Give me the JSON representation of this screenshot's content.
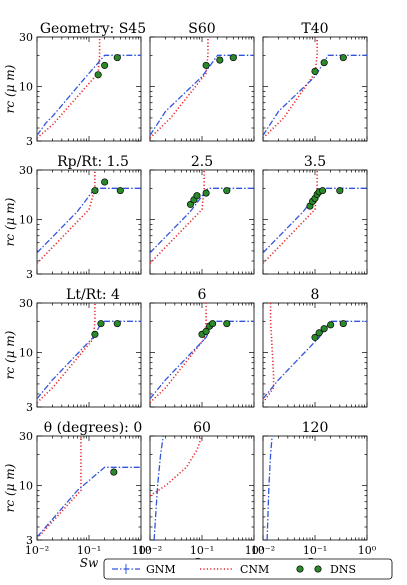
{
  "chart_data": {
    "type": "line",
    "grid": false,
    "legend_placement": "bottom-center",
    "x_scale": "log",
    "y_scale": "log",
    "xlim": [
      0.01,
      1
    ],
    "ylim": [
      3,
      30
    ],
    "x_tick_labels": [
      "10⁻²",
      "10⁻¹",
      "10⁰"
    ],
    "y_tick_labels": [
      "3",
      "10",
      "30"
    ],
    "xlabel": "Sw",
    "ylabel": "rc (μ m)",
    "legend": [
      {
        "name": "GNM",
        "color": "#3355dd",
        "style": "dash-dot"
      },
      {
        "name": "CNM",
        "color": "#e8242b",
        "style": "dotted"
      },
      {
        "name": "DNS",
        "color": "#2a8a2a",
        "style": "marker"
      }
    ],
    "rows": [
      {
        "label": "Geometry:",
        "panels": [
          {
            "title": "S45",
            "gnm": [
              [
                0.01,
                3.4
              ],
              [
                0.015,
                4.5
              ],
              [
                0.02,
                5.2
              ],
              [
                0.08,
                11.8
              ],
              [
                0.2,
                20
              ],
              [
                1,
                20
              ]
            ],
            "cnm": [
              [
                0.01,
                3.2
              ],
              [
                0.02,
                4.3
              ],
              [
                0.15,
                13.5
              ],
              [
                0.16,
                20
              ],
              [
                0.16,
                30
              ]
            ],
            "dns": [
              [
                0.2,
                16
              ],
              [
                0.35,
                19
              ],
              [
                0.15,
                13
              ]
            ]
          },
          {
            "title": "S60",
            "gnm": [
              [
                0.01,
                3.4
              ],
              [
                0.02,
                5.8
              ],
              [
                0.1,
                12.5
              ],
              [
                0.2,
                20
              ],
              [
                1,
                20
              ]
            ],
            "cnm": [
              [
                0.01,
                3.2
              ],
              [
                0.025,
                5
              ],
              [
                0.12,
                13.5
              ],
              [
                0.13,
                20
              ],
              [
                0.13,
                30
              ]
            ],
            "dns": [
              [
                0.12,
                16
              ],
              [
                0.22,
                18
              ],
              [
                0.4,
                19
              ]
            ]
          },
          {
            "title": "T40",
            "gnm": [
              [
                0.01,
                3.4
              ],
              [
                0.02,
                5.8
              ],
              [
                0.1,
                12.5
              ],
              [
                0.18,
                20
              ],
              [
                1,
                20
              ]
            ],
            "cnm": [
              [
                0.01,
                3.2
              ],
              [
                0.025,
                5
              ],
              [
                0.1,
                13.5
              ],
              [
                0.11,
                20
              ],
              [
                0.11,
                30
              ]
            ],
            "dns": [
              [
                0.1,
                14
              ],
              [
                0.15,
                17
              ],
              [
                0.35,
                19
              ]
            ]
          }
        ]
      },
      {
        "label": "Rp/Rt:",
        "panels": [
          {
            "title": "1.5",
            "gnm": [
              [
                0.01,
                4.8
              ],
              [
                0.06,
                12
              ],
              [
                0.13,
                20
              ],
              [
                1,
                20
              ]
            ],
            "cnm": [
              [
                0.01,
                3.8
              ],
              [
                0.1,
                12.5
              ],
              [
                0.13,
                20
              ],
              [
                0.13,
                30
              ]
            ],
            "dns": [
              [
                0.13,
                19
              ],
              [
                0.2,
                23
              ],
              [
                0.4,
                19
              ]
            ]
          },
          {
            "title": "2.5",
            "gnm": [
              [
                0.01,
                4.8
              ],
              [
                0.06,
                12
              ],
              [
                0.13,
                20
              ],
              [
                1,
                20
              ]
            ],
            "cnm": [
              [
                0.01,
                3.8
              ],
              [
                0.1,
                12.5
              ],
              [
                0.11,
                20
              ],
              [
                0.11,
                30
              ]
            ],
            "dns": [
              [
                0.06,
                14
              ],
              [
                0.07,
                15.5
              ],
              [
                0.08,
                17
              ],
              [
                0.12,
                18
              ],
              [
                0.3,
                19
              ]
            ]
          },
          {
            "title": "3.5",
            "gnm": [
              [
                0.01,
                4.8
              ],
              [
                0.06,
                12
              ],
              [
                0.13,
                20
              ],
              [
                1,
                20
              ]
            ],
            "cnm": [
              [
                0.01,
                3.8
              ],
              [
                0.1,
                12.5
              ],
              [
                0.11,
                20
              ],
              [
                0.11,
                30
              ]
            ],
            "dns": [
              [
                0.08,
                13.5
              ],
              [
                0.09,
                15
              ],
              [
                0.1,
                16
              ],
              [
                0.11,
                17.5
              ],
              [
                0.12,
                18.5
              ],
              [
                0.14,
                19
              ],
              [
                0.3,
                19
              ]
            ]
          }
        ]
      },
      {
        "label": "Lt/Rt:",
        "panels": [
          {
            "title": "4",
            "gnm": [
              [
                0.01,
                3.6
              ],
              [
                0.02,
                5.5
              ],
              [
                0.12,
                14
              ],
              [
                0.18,
                20
              ],
              [
                1,
                20
              ]
            ],
            "cnm": [
              [
                0.01,
                3.3
              ],
              [
                0.02,
                4.6
              ],
              [
                0.12,
                13.5
              ],
              [
                0.13,
                20
              ],
              [
                0.13,
                30
              ]
            ],
            "dns": [
              [
                0.13,
                15
              ],
              [
                0.17,
                19
              ],
              [
                0.35,
                19
              ]
            ]
          },
          {
            "title": "6",
            "gnm": [
              [
                0.01,
                3.6
              ],
              [
                0.02,
                5.5
              ],
              [
                0.12,
                14
              ],
              [
                0.17,
                20
              ],
              [
                1,
                20
              ]
            ],
            "cnm": [
              [
                0.01,
                3.3
              ],
              [
                0.02,
                4.6
              ],
              [
                0.11,
                13.5
              ],
              [
                0.12,
                20
              ],
              [
                0.12,
                30
              ]
            ],
            "dns": [
              [
                0.1,
                15
              ],
              [
                0.12,
                16
              ],
              [
                0.14,
                18
              ],
              [
                0.16,
                19
              ],
              [
                0.3,
                19
              ]
            ]
          },
          {
            "title": "8",
            "gnm": [
              [
                0.01,
                3.6
              ],
              [
                0.02,
                5.5
              ],
              [
                0.12,
                14
              ],
              [
                0.2,
                20
              ],
              [
                1,
                20
              ]
            ],
            "cnm": [
              [
                0.01,
                3.3
              ],
              [
                0.016,
                4.6
              ],
              [
                0.016,
                6
              ],
              [
                0.014,
                20
              ],
              [
                0.014,
                30
              ]
            ],
            "dns": [
              [
                0.1,
                14
              ],
              [
                0.12,
                15.5
              ],
              [
                0.15,
                17
              ],
              [
                0.2,
                18.5
              ],
              [
                0.35,
                19
              ]
            ]
          }
        ]
      },
      {
        "label": "θ (degrees):",
        "panels": [
          {
            "title": "0",
            "gnm": [
              [
                0.01,
                3.2
              ],
              [
                0.06,
                9
              ],
              [
                0.2,
                15
              ],
              [
                1,
                15
              ]
            ],
            "cnm": [
              [
                0.01,
                3.1
              ],
              [
                0.07,
                9
              ],
              [
                0.07,
                12
              ],
              [
                0.07,
                20
              ],
              [
                0.07,
                30
              ]
            ],
            "dns": [
              [
                0.3,
                13.5
              ]
            ]
          },
          {
            "title": "60",
            "gnm": [
              [
                0.012,
                3
              ],
              [
                0.014,
                10
              ],
              [
                0.016,
                20
              ],
              [
                0.018,
                30
              ]
            ],
            "cnm": [
              [
                0.01,
                8
              ],
              [
                0.02,
                10
              ],
              [
                0.05,
                15
              ],
              [
                0.08,
                22
              ],
              [
                0.1,
                30
              ]
            ],
            "dns": []
          },
          {
            "title": "120",
            "gnm": [
              [
                0.012,
                3
              ],
              [
                0.013,
                10
              ],
              [
                0.014,
                20
              ],
              [
                0.015,
                30
              ]
            ],
            "cnm": [],
            "dns": []
          }
        ]
      }
    ]
  }
}
